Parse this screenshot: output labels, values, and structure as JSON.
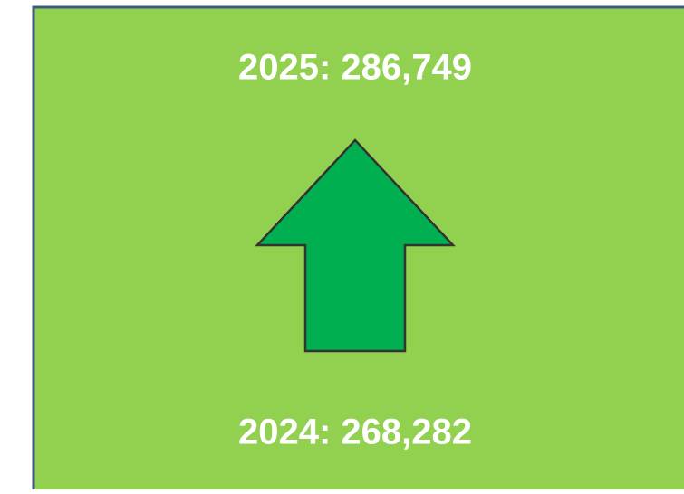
{
  "current": "2025: 286,749",
  "previous": "2024: 268,282"
}
